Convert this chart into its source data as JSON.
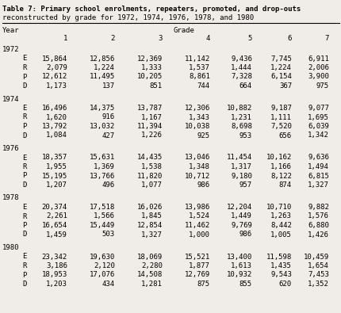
{
  "title_line1": "Table 7: Primary school enrolments, repeaters, promoted, and drop-outs",
  "title_line2": "reconstructed by grade for 1972, 1974, 1976, 1978, and 1980",
  "data": {
    "1972": {
      "E": [
        15864,
        12856,
        12369,
        11142,
        9436,
        7745,
        6911
      ],
      "R": [
        2079,
        1224,
        1333,
        1537,
        1444,
        1224,
        2006
      ],
      "P": [
        12612,
        11495,
        10205,
        8861,
        7328,
        6154,
        3900
      ],
      "D": [
        1173,
        137,
        851,
        744,
        664,
        367,
        975
      ]
    },
    "1974": {
      "E": [
        16496,
        14375,
        13787,
        12306,
        10882,
        9187,
        9077
      ],
      "R": [
        1620,
        916,
        1167,
        1343,
        1231,
        1111,
        1695
      ],
      "P": [
        13792,
        13032,
        11394,
        10038,
        8698,
        7520,
        6039
      ],
      "D": [
        1084,
        427,
        1226,
        925,
        953,
        656,
        1342
      ]
    },
    "1976": {
      "E": [
        18357,
        15631,
        14435,
        13046,
        11454,
        10162,
        9636
      ],
      "R": [
        1955,
        1369,
        1538,
        1348,
        1317,
        1166,
        1494
      ],
      "P": [
        15195,
        13766,
        11820,
        10712,
        9180,
        8122,
        6815
      ],
      "D": [
        1207,
        496,
        1077,
        986,
        957,
        874,
        1327
      ]
    },
    "1978": {
      "E": [
        20374,
        17518,
        16026,
        13986,
        12204,
        10710,
        9882
      ],
      "R": [
        2261,
        1566,
        1845,
        1524,
        1449,
        1263,
        1576
      ],
      "P": [
        16654,
        15449,
        12854,
        11462,
        9769,
        8442,
        6880
      ],
      "D": [
        1459,
        503,
        1327,
        1000,
        986,
        1005,
        1426
      ]
    },
    "1980": {
      "E": [
        23342,
        19630,
        18069,
        15521,
        13400,
        11598,
        10459
      ],
      "R": [
        3186,
        2120,
        2280,
        1877,
        1613,
        1435,
        1654
      ],
      "P": [
        18953,
        17076,
        14508,
        12769,
        10932,
        9543,
        7453
      ],
      "D": [
        1203,
        434,
        1281,
        875,
        855,
        620,
        1352
      ]
    }
  },
  "years": [
    "1972",
    "1974",
    "1976",
    "1978",
    "1980"
  ],
  "row_labels": [
    "E",
    "R",
    "P",
    "D"
  ],
  "bg_color": "#f0ede8",
  "font_family": "monospace",
  "title_color": "#000000",
  "font_size": 6.5,
  "title_font_size": 6.5
}
